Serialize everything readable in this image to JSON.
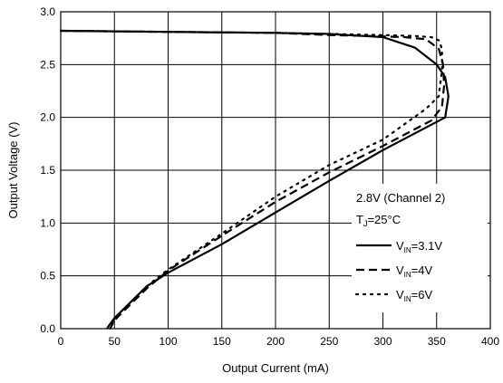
{
  "chart_data": {
    "type": "line",
    "xlabel": "Output Current (mA)",
    "ylabel": "Output Voltage (V)",
    "xlim": [
      0,
      400
    ],
    "ylim": [
      0,
      3.0
    ],
    "xticks": [
      "0",
      "50",
      "100",
      "150",
      "200",
      "250",
      "300",
      "350",
      "400"
    ],
    "yticks": [
      "0.0",
      "0.5",
      "1.0",
      "1.5",
      "2.0",
      "2.5",
      "3.0"
    ],
    "grid": true,
    "legend_placement": "lower-right",
    "annotation": {
      "line1": "2.8V (Channel 2)",
      "line2_main": "T",
      "line2_sub": "J",
      "line2_rest": "=25°C"
    },
    "series": [
      {
        "name": "VIN=3.1V",
        "label_main": "V",
        "label_sub": "IN",
        "label_rest": "=3.1V",
        "style": "solid",
        "x": [
          0,
          100,
          200,
          250,
          300,
          330,
          350,
          358,
          361,
          358,
          300,
          250,
          200,
          150,
          100,
          80,
          60,
          50,
          45,
          43
        ],
        "y": [
          2.82,
          2.81,
          2.8,
          2.79,
          2.76,
          2.66,
          2.5,
          2.38,
          2.2,
          2.0,
          1.69,
          1.4,
          1.1,
          0.8,
          0.53,
          0.4,
          0.2,
          0.1,
          0.03,
          0.0
        ]
      },
      {
        "name": "VIN=4V",
        "label_main": "V",
        "label_sub": "IN",
        "label_rest": "=4V",
        "style": "dashed",
        "x": [
          0,
          100,
          200,
          250,
          290,
          320,
          340,
          352,
          356,
          357,
          355,
          345,
          300,
          250,
          200,
          150,
          100,
          80,
          60,
          50,
          46
        ],
        "y": [
          2.82,
          2.81,
          2.8,
          2.78,
          2.77,
          2.76,
          2.74,
          2.65,
          2.5,
          2.3,
          2.1,
          1.97,
          1.73,
          1.48,
          1.2,
          0.88,
          0.55,
          0.38,
          0.18,
          0.08,
          0.0
        ]
      },
      {
        "name": "VIN=6V",
        "label_main": "V",
        "label_sub": "IN",
        "label_rest": "=6V",
        "style": "dotted",
        "x": [
          0,
          100,
          200,
          250,
          300,
          330,
          345,
          352,
          355,
          355,
          352,
          340,
          300,
          250,
          200,
          150,
          100,
          80,
          60,
          50,
          46
        ],
        "y": [
          2.82,
          2.81,
          2.8,
          2.79,
          2.78,
          2.77,
          2.76,
          2.73,
          2.65,
          2.45,
          2.2,
          2.08,
          1.79,
          1.55,
          1.25,
          0.9,
          0.56,
          0.4,
          0.2,
          0.1,
          0.0
        ]
      }
    ]
  }
}
